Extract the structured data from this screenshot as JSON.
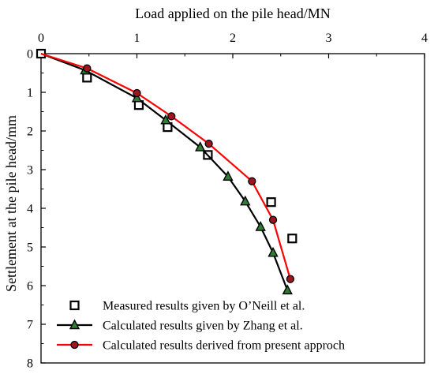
{
  "chart_data": {
    "type": "line",
    "xlabel": "Load applied on the pile head/MN",
    "ylabel": "Settlement at the pile head/mm",
    "xlim": [
      0,
      4
    ],
    "ylim": [
      0,
      8
    ],
    "x_axis_position": "top",
    "y_axis_inverted": true,
    "xticks": [
      "0",
      "1",
      "2",
      "3",
      "4"
    ],
    "yticks": [
      "0",
      "1",
      "2",
      "3",
      "4",
      "5",
      "6",
      "7",
      "8"
    ],
    "grid": false,
    "legend_position": "bottom-left",
    "series": [
      {
        "name": "Measured results given by O’Neill et al.",
        "style": "markers",
        "marker": "open-square",
        "color": "#000000",
        "points": [
          [
            0,
            0
          ],
          [
            0.48,
            0.62
          ],
          [
            1.02,
            1.33
          ],
          [
            1.32,
            1.9
          ],
          [
            1.74,
            2.62
          ],
          [
            2.4,
            3.84
          ],
          [
            2.62,
            4.78
          ]
        ]
      },
      {
        "name": "Calculated results given by Zhang et al.",
        "style": "line-markers",
        "marker": "triangle",
        "color": "#000000",
        "marker_fill": "#2e7d32",
        "points": [
          [
            0,
            0
          ],
          [
            0.46,
            0.43
          ],
          [
            1.0,
            1.15
          ],
          [
            1.3,
            1.72
          ],
          [
            1.66,
            2.42
          ],
          [
            1.95,
            3.18
          ],
          [
            2.13,
            3.82
          ],
          [
            2.29,
            4.48
          ],
          [
            2.42,
            5.15
          ],
          [
            2.57,
            6.12
          ]
        ]
      },
      {
        "name": "Calculated results derived from present approch",
        "style": "line-markers",
        "marker": "circle",
        "color": "#ff0000",
        "marker_fill": "#a0141e",
        "points": [
          [
            0,
            0
          ],
          [
            0.48,
            0.38
          ],
          [
            1.0,
            1.02
          ],
          [
            1.36,
            1.62
          ],
          [
            1.75,
            2.33
          ],
          [
            2.2,
            3.3
          ],
          [
            2.42,
            4.3
          ],
          [
            2.6,
            5.83
          ]
        ]
      }
    ]
  }
}
